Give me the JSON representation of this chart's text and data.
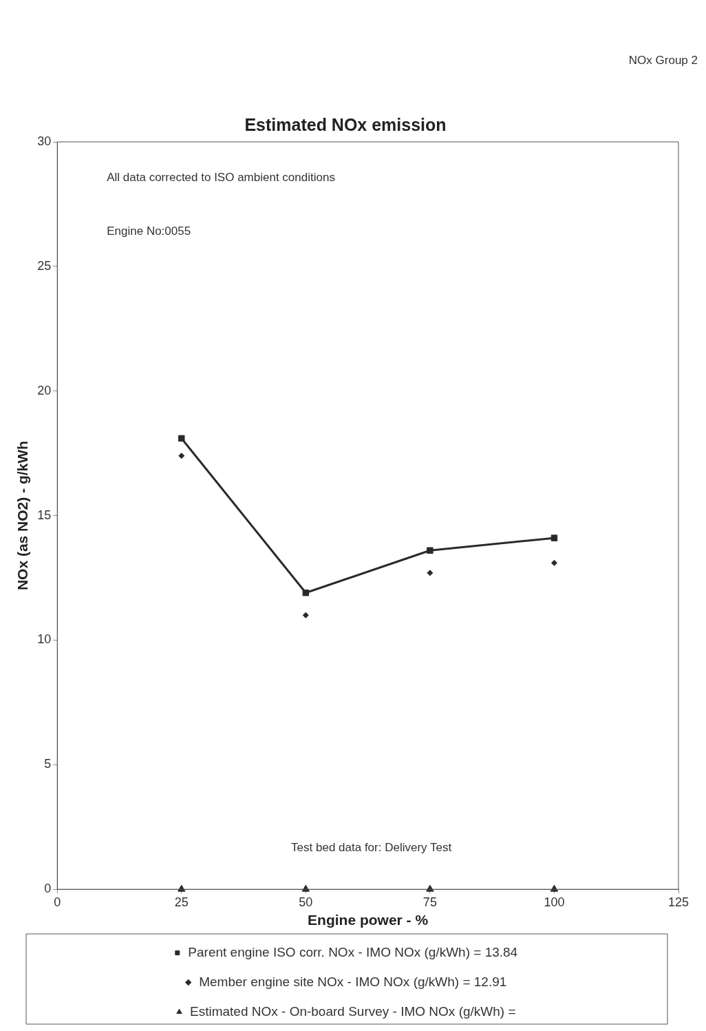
{
  "chart_data": {
    "type": "line",
    "title": "Estimated NOx emission",
    "xlabel": "Engine power - %",
    "ylabel": "NOx (as NO2) - g/kWh",
    "annotations": [
      "NOx Group 2",
      "All data corrected to ISO ambient conditions",
      "Engine No:0055",
      "Test bed data for: Delivery Test"
    ],
    "x": [
      25,
      50,
      75,
      100
    ],
    "series": [
      {
        "name": "Parent engine ISO corr. NOx - IMO NOx (g/kWh) = 13.84",
        "type": "line",
        "marker": "square",
        "color": "#2a2a2a",
        "values": [
          18.1,
          11.9,
          13.6,
          14.1
        ]
      },
      {
        "name": "Member engine site NOx - IMO NOx (g/kWh) = 12.91",
        "type": "scatter",
        "marker": "diamond",
        "color": "#2a2a2a",
        "values": [
          17.4,
          11.0,
          12.7,
          13.1
        ]
      },
      {
        "name": "Estimated NOx - On-board Survey - IMO NOx (g/kWh) =",
        "type": "scatter",
        "marker": "triangle",
        "color": "#2a2a2a",
        "values": [
          0,
          0,
          0,
          0
        ]
      }
    ],
    "xlim": [
      0,
      125
    ],
    "xticks": [
      0,
      25,
      50,
      75,
      100,
      125
    ],
    "ylim": [
      0,
      30
    ],
    "yticks": [
      0,
      5,
      10,
      15,
      20,
      25,
      30
    ],
    "grid": false,
    "legend": "bottom"
  }
}
